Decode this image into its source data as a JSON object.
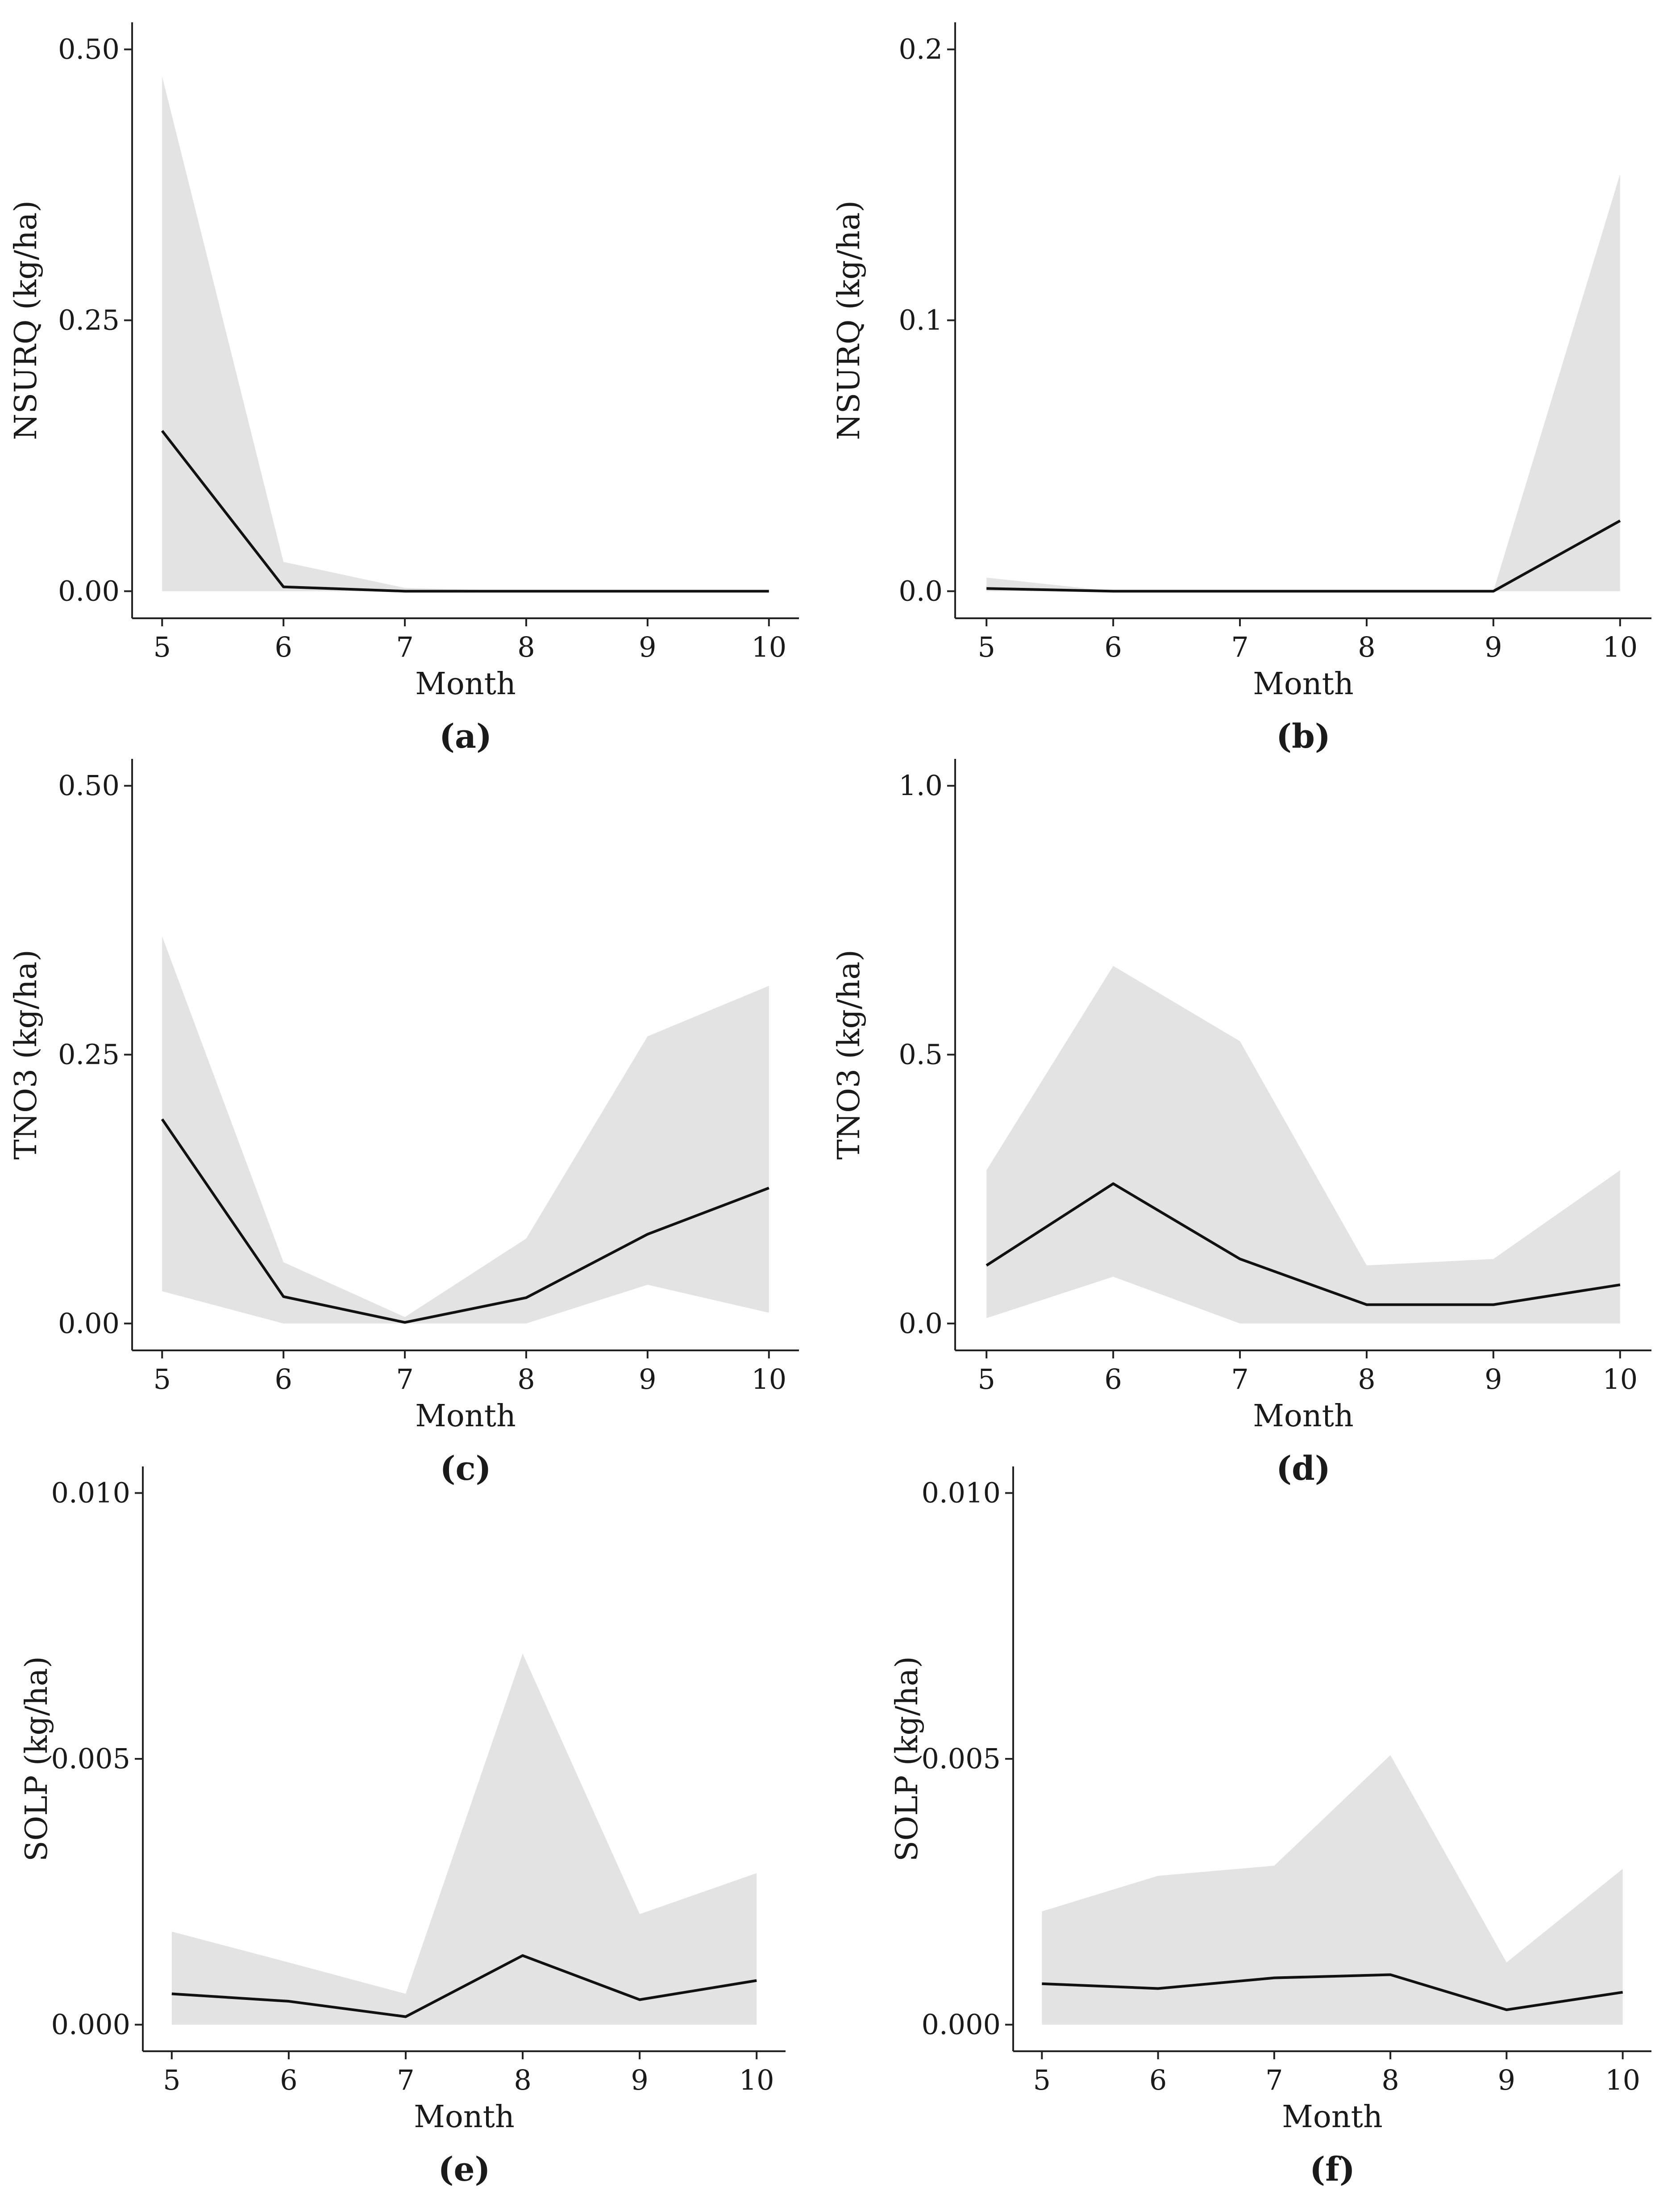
{
  "figure": {
    "background": "#ffffff",
    "band_color": "#e3e3e3",
    "line_color": "#111111"
  },
  "chart_data": [
    {
      "id": "a",
      "type": "area",
      "panel_label": "(a)",
      "xlabel": "Month",
      "ylabel": "NSURQ (kg/ha)",
      "x": [
        5,
        6,
        7,
        8,
        9,
        10
      ],
      "xticks": [
        "5",
        "6",
        "7",
        "8",
        "9",
        "10"
      ],
      "ylim": [
        -0.025,
        0.525
      ],
      "yticks": [
        0,
        0.25,
        0.5
      ],
      "ytick_labels": [
        "0.00",
        "0.25",
        "0.50"
      ],
      "series": [
        {
          "name": "median",
          "values": [
            0.148,
            0.004,
            0.0,
            0.0,
            0.0,
            0.0
          ]
        },
        {
          "name": "lower",
          "values": [
            0.0,
            0.0,
            0.0,
            0.0,
            0.0,
            0.0
          ]
        },
        {
          "name": "upper",
          "values": [
            0.475,
            0.027,
            0.003,
            0.0,
            0.0,
            0.0
          ]
        }
      ]
    },
    {
      "id": "b",
      "type": "area",
      "panel_label": "(b)",
      "xlabel": "Month",
      "ylabel": "NSURQ (kg/ha)",
      "x": [
        5,
        6,
        7,
        8,
        9,
        10
      ],
      "xticks": [
        "5",
        "6",
        "7",
        "8",
        "9",
        "10"
      ],
      "ylim": [
        -0.01,
        0.21
      ],
      "yticks": [
        0,
        0.1,
        0.2
      ],
      "ytick_labels": [
        "0.0",
        "0.1",
        "0.2"
      ],
      "series": [
        {
          "name": "median",
          "values": [
            0.001,
            0.0,
            0.0,
            0.0,
            0.0,
            0.026
          ]
        },
        {
          "name": "lower",
          "values": [
            0.0,
            0.0,
            0.0,
            0.0,
            0.0,
            0.0
          ]
        },
        {
          "name": "upper",
          "values": [
            0.005,
            0.0,
            0.0,
            0.0,
            0.0,
            0.154
          ]
        }
      ]
    },
    {
      "id": "c",
      "type": "area",
      "panel_label": "(c)",
      "xlabel": "Month",
      "ylabel": "TNO3 (kg/ha)",
      "x": [
        5,
        6,
        7,
        8,
        9,
        10
      ],
      "xticks": [
        "5",
        "6",
        "7",
        "8",
        "9",
        "10"
      ],
      "ylim": [
        -0.025,
        0.525
      ],
      "yticks": [
        0,
        0.25,
        0.5
      ],
      "ytick_labels": [
        "0.00",
        "0.25",
        "0.50"
      ],
      "series": [
        {
          "name": "median",
          "values": [
            0.19,
            0.025,
            0.001,
            0.024,
            0.083,
            0.126
          ]
        },
        {
          "name": "lower",
          "values": [
            0.03,
            0.0,
            0.0,
            0.0,
            0.036,
            0.01
          ]
        },
        {
          "name": "upper",
          "values": [
            0.36,
            0.057,
            0.006,
            0.079,
            0.267,
            0.314
          ]
        }
      ]
    },
    {
      "id": "d",
      "type": "area",
      "panel_label": "(d)",
      "xlabel": "Month",
      "ylabel": "TNO3 (kg/ha)",
      "x": [
        5,
        6,
        7,
        8,
        9,
        10
      ],
      "xticks": [
        "5",
        "6",
        "7",
        "8",
        "9",
        "10"
      ],
      "ylim": [
        -0.05,
        1.05
      ],
      "yticks": [
        0,
        0.5,
        1.0
      ],
      "ytick_labels": [
        "0.0",
        "0.5",
        "1.0"
      ],
      "series": [
        {
          "name": "median",
          "values": [
            0.108,
            0.26,
            0.12,
            0.035,
            0.035,
            0.072
          ]
        },
        {
          "name": "lower",
          "values": [
            0.01,
            0.087,
            0.0,
            0.0,
            0.0,
            0.0
          ]
        },
        {
          "name": "upper",
          "values": [
            0.285,
            0.665,
            0.525,
            0.108,
            0.12,
            0.285
          ]
        }
      ]
    },
    {
      "id": "e",
      "type": "area",
      "panel_label": "(e)",
      "xlabel": "Month",
      "ylabel": "SOLP (kg/ha)",
      "x": [
        5,
        6,
        7,
        8,
        9,
        10
      ],
      "xticks": [
        "5",
        "6",
        "7",
        "8",
        "9",
        "10"
      ],
      "ylim": [
        -0.0005,
        0.0105
      ],
      "yticks": [
        0,
        0.005,
        0.01
      ],
      "ytick_labels": [
        "0.000",
        "0.005",
        "0.010"
      ],
      "series": [
        {
          "name": "median",
          "values": [
            0.00058,
            0.00044,
            0.00015,
            0.0013,
            0.00047,
            0.00083
          ]
        },
        {
          "name": "lower",
          "values": [
            0.0,
            0.0,
            0.0,
            0.0,
            0.0,
            0.0
          ]
        },
        {
          "name": "upper",
          "values": [
            0.00175,
            0.00117,
            0.00058,
            0.00698,
            0.00208,
            0.00285
          ]
        }
      ]
    },
    {
      "id": "f",
      "type": "area",
      "panel_label": "(f)",
      "xlabel": "Month",
      "ylabel": "SOLP (kg/ha)",
      "x": [
        5,
        6,
        7,
        8,
        9,
        10
      ],
      "xticks": [
        "5",
        "6",
        "7",
        "8",
        "9",
        "10"
      ],
      "ylim": [
        -0.0005,
        0.0105
      ],
      "yticks": [
        0,
        0.005,
        0.01
      ],
      "ytick_labels": [
        "0.000",
        "0.005",
        "0.010"
      ],
      "series": [
        {
          "name": "median",
          "values": [
            0.00077,
            0.00068,
            0.00088,
            0.00094,
            0.00028,
            0.00061
          ]
        },
        {
          "name": "lower",
          "values": [
            0.0,
            0.0,
            0.0,
            0.0,
            0.0,
            0.0
          ]
        },
        {
          "name": "upper",
          "values": [
            0.00213,
            0.0028,
            0.00299,
            0.00507,
            0.00117,
            0.00293
          ]
        }
      ]
    }
  ]
}
